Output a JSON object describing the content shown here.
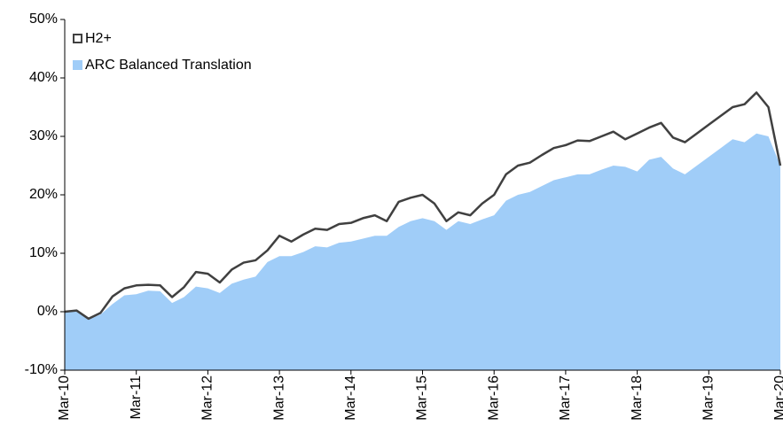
{
  "chart_data": {
    "type": "line",
    "categories": [
      "Mar-10",
      null,
      null,
      null,
      null,
      null,
      "Mar-11",
      null,
      null,
      null,
      null,
      null,
      "Mar-12",
      null,
      null,
      null,
      null,
      null,
      "Mar-13",
      null,
      null,
      null,
      null,
      null,
      "Mar-14",
      null,
      null,
      null,
      null,
      null,
      "Mar-15",
      null,
      null,
      null,
      null,
      null,
      "Mar-16",
      null,
      null,
      null,
      null,
      null,
      "Mar-17",
      null,
      null,
      null,
      null,
      null,
      "Mar-18",
      null,
      null,
      null,
      null,
      null,
      "Mar-19",
      null,
      null,
      null,
      null,
      null,
      "Mar-20"
    ],
    "series": [
      {
        "name": "H2+",
        "type": "line",
        "color": "#404040",
        "values": [
          0,
          0.2,
          -1.2,
          -0.2,
          2.6,
          4.0,
          4.5,
          4.6,
          4.5,
          2.5,
          4.2,
          6.8,
          6.5,
          5.0,
          7.2,
          8.4,
          8.8,
          10.5,
          13.0,
          12.0,
          13.2,
          14.2,
          14.0,
          15.0,
          15.2,
          16.0,
          16.5,
          15.5,
          18.8,
          19.5,
          20.0,
          18.5,
          15.5,
          17.0,
          16.5,
          18.5,
          20.0,
          23.5,
          25.0,
          25.5,
          26.8,
          28.0,
          28.5,
          29.3,
          29.2,
          30.0,
          30.8,
          29.5,
          30.5,
          31.5,
          32.3,
          29.8,
          29.0,
          30.5,
          32.0,
          33.5,
          35.0,
          35.5,
          37.5,
          35.0,
          25.0
        ]
      },
      {
        "name": "ARC Balanced Translation",
        "type": "area",
        "color": "#a0cdf8",
        "values": [
          0,
          0.1,
          -1.3,
          -0.5,
          1.3,
          2.8,
          3.0,
          3.6,
          3.5,
          1.5,
          2.5,
          4.3,
          4.0,
          3.2,
          4.8,
          5.5,
          6.0,
          8.5,
          9.5,
          9.5,
          10.2,
          11.2,
          11.0,
          11.8,
          12.0,
          12.5,
          13.0,
          13.0,
          14.5,
          15.5,
          16.0,
          15.5,
          14.0,
          15.5,
          15.0,
          15.8,
          16.5,
          19.0,
          20.0,
          20.5,
          21.5,
          22.5,
          23.0,
          23.5,
          23.5,
          24.3,
          25.0,
          24.8,
          24.0,
          26.0,
          26.5,
          24.5,
          23.5,
          25.0,
          26.5,
          28.0,
          29.5,
          29.0,
          30.5,
          30.0,
          25.0
        ]
      }
    ],
    "ylim": [
      -10,
      50
    ],
    "yticks": [
      {
        "value": -10,
        "label": "-10%"
      },
      {
        "value": 0,
        "label": "0%"
      },
      {
        "value": 10,
        "label": "10%"
      },
      {
        "value": 20,
        "label": "20%"
      },
      {
        "value": 30,
        "label": "30%"
      },
      {
        "value": 40,
        "label": "40%"
      },
      {
        "value": 50,
        "label": "50%"
      }
    ],
    "legend": "top-left"
  }
}
